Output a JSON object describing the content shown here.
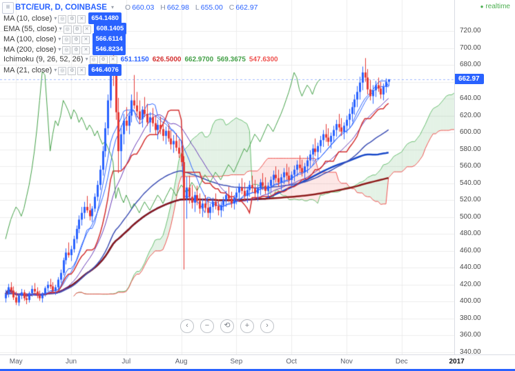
{
  "header": {
    "symbol_title": "BTC/EUR, D, COINBASE",
    "ohlc": {
      "o_label": "O",
      "o_value": "660.03",
      "h_label": "H",
      "h_value": "662.98",
      "l_label": "L",
      "l_value": "655.00",
      "c_label": "C",
      "c_value": "662.97"
    },
    "realtime_label": "realtime"
  },
  "legend": {
    "row_buttons": [
      {
        "name": "visibility-toggle-button",
        "glyph": "◎",
        "label": "Toggle visibility"
      },
      {
        "name": "settings-button",
        "glyph": "⚙",
        "label": "Settings"
      },
      {
        "name": "delete-button",
        "glyph": "✕",
        "label": "Remove"
      }
    ],
    "rows": [
      {
        "label": "MA (10, close)",
        "values": [
          {
            "text": "654.1480",
            "badge": true,
            "color": "#2962ff"
          }
        ]
      },
      {
        "label": "EMA (55, close)",
        "values": [
          {
            "text": "608.1405",
            "badge": true,
            "color": "#2962ff"
          }
        ]
      },
      {
        "label": "MA (100, close)",
        "values": [
          {
            "text": "566.6114",
            "badge": true,
            "color": "#2962ff"
          }
        ]
      },
      {
        "label": "MA (200, close)",
        "values": [
          {
            "text": "546.8234",
            "badge": true,
            "color": "#2962ff"
          }
        ]
      },
      {
        "label": "Ichimoku (9, 26, 52, 26)",
        "values": [
          {
            "text": "651.1150",
            "badge": false,
            "color": "#2962ff"
          },
          {
            "text": "626.5000",
            "badge": false,
            "color": "#d32f2f"
          },
          {
            "text": "662.9700",
            "badge": false,
            "color": "#43a047"
          },
          {
            "text": "569.3675",
            "badge": false,
            "color": "#43a047"
          },
          {
            "text": "547.6300",
            "badge": false,
            "color": "#ef5350"
          }
        ]
      },
      {
        "label": "MA (21, close)",
        "values": [
          {
            "text": "646.4076",
            "badge": true,
            "color": "#2962ff"
          }
        ]
      }
    ]
  },
  "price_scale": {
    "labels": [
      "720.00",
      "700.00",
      "680.00",
      "660.00",
      "640.00",
      "620.00",
      "600.00",
      "580.00",
      "560.00",
      "540.00",
      "520.00",
      "500.00",
      "480.00",
      "460.00",
      "440.00",
      "420.00",
      "400.00",
      "380.00",
      "360.00",
      "340.00"
    ],
    "last_price_label": "662.97",
    "tag_color": "#2962ff"
  },
  "nav": {
    "buttons": [
      {
        "name": "pan-left-button",
        "glyph": "‹"
      },
      {
        "name": "zoom-out-button",
        "glyph": "−"
      },
      {
        "name": "reset-view-button",
        "glyph": "⟲"
      },
      {
        "name": "zoom-in-button",
        "glyph": "+"
      },
      {
        "name": "pan-right-button",
        "glyph": "›"
      }
    ]
  },
  "chart_data": {
    "type": "candlestick",
    "title": "BTC/EUR, D, COINBASE",
    "y_axis": {
      "min": 340,
      "max": 720,
      "step": 20,
      "unit": "EUR"
    },
    "x_axis": {
      "tick_labels": [
        "May",
        "Jun",
        "Jul",
        "Aug",
        "Sep",
        "Oct",
        "Nov",
        "Dec",
        "2017"
      ],
      "tick_indices": [
        4,
        25,
        46,
        67,
        88,
        109,
        130,
        151,
        172
      ]
    },
    "last_price": 662.97,
    "colors": {
      "up": "#2962ff",
      "down": "#e53935",
      "grid": "#ececec",
      "last_price_line": "rgba(41,98,255,0.45)"
    },
    "overlays": [
      {
        "name": "MA (10, close)",
        "type": "sma",
        "length": 10,
        "color": "#2962ff",
        "width": 1,
        "last_value": 654.148
      },
      {
        "name": "MA (21, close)",
        "type": "sma",
        "length": 21,
        "color": "#673ab7",
        "width": 1,
        "last_value": 646.4076
      },
      {
        "name": "EMA (55, close)",
        "type": "ema",
        "length": 55,
        "color": "#3f51b5",
        "width": 1.5,
        "last_value": 608.1405
      },
      {
        "name": "MA (100, close)",
        "type": "sma",
        "length": 100,
        "color": "#1848c8",
        "width": 2.5,
        "last_value": 566.6114
      },
      {
        "name": "MA (200, close)",
        "type": "sma",
        "length": 200,
        "color": "#8e1b1b",
        "width": 2.5,
        "last_value": 546.8234
      }
    ],
    "ichimoku": {
      "params": [
        9,
        26,
        52,
        26
      ],
      "displacement": 26,
      "last_values": [
        651.115,
        626.5,
        662.97,
        569.3675,
        547.63
      ],
      "colors": {
        "tenkan": "#2962ff",
        "kijun": "#d32f2f",
        "chikou": "#43a047",
        "senkou_a": "#6abf72",
        "senkou_b": "#ef5350",
        "cloud_up": "rgba(103,183,119,0.18)",
        "cloud_down": "rgba(239,83,80,0.14)"
      }
    },
    "candles": [
      [
        404,
        414,
        399,
        409
      ],
      [
        409,
        421,
        405,
        417
      ],
      [
        417,
        423,
        410,
        413
      ],
      [
        413,
        418,
        402,
        405
      ],
      [
        405,
        412,
        396,
        399
      ],
      [
        399,
        409,
        395,
        407
      ],
      [
        407,
        415,
        403,
        411
      ],
      [
        411,
        414,
        401,
        404
      ],
      [
        404,
        410,
        397,
        402
      ],
      [
        402,
        412,
        399,
        410
      ],
      [
        410,
        419,
        406,
        415
      ],
      [
        415,
        422,
        409,
        412
      ],
      [
        412,
        417,
        404,
        407
      ],
      [
        407,
        413,
        401,
        404
      ],
      [
        404,
        411,
        399,
        409
      ],
      [
        409,
        418,
        406,
        416
      ],
      [
        416,
        424,
        412,
        420
      ],
      [
        420,
        427,
        415,
        418
      ],
      [
        418,
        423,
        410,
        413
      ],
      [
        413,
        420,
        408,
        417
      ],
      [
        417,
        429,
        414,
        426
      ],
      [
        426,
        438,
        422,
        434
      ],
      [
        434,
        452,
        431,
        449
      ],
      [
        449,
        463,
        444,
        458
      ],
      [
        458,
        470,
        452,
        455
      ],
      [
        455,
        466,
        448,
        462
      ],
      [
        462,
        478,
        458,
        474
      ],
      [
        474,
        490,
        469,
        486
      ],
      [
        486,
        502,
        481,
        497
      ],
      [
        497,
        512,
        490,
        505
      ],
      [
        505,
        518,
        498,
        512
      ],
      [
        512,
        525,
        505,
        508
      ],
      [
        508,
        516,
        496,
        501
      ],
      [
        501,
        513,
        494,
        510
      ],
      [
        510,
        528,
        506,
        524
      ],
      [
        524,
        543,
        519,
        538
      ],
      [
        538,
        561,
        532,
        556
      ],
      [
        556,
        584,
        549,
        578
      ],
      [
        578,
        612,
        571,
        605
      ],
      [
        605,
        645,
        597,
        638
      ],
      [
        638,
        682,
        629,
        672
      ],
      [
        672,
        701,
        655,
        668
      ],
      [
        668,
        678,
        615,
        624
      ],
      [
        624,
        641,
        552,
        578
      ],
      [
        578,
        608,
        556,
        598
      ],
      [
        598,
        622,
        586,
        614
      ],
      [
        614,
        630,
        602,
        608
      ],
      [
        608,
        625,
        598,
        620
      ],
      [
        620,
        645,
        612,
        638
      ],
      [
        638,
        668,
        628,
        632
      ],
      [
        632,
        648,
        618,
        625
      ],
      [
        625,
        638,
        610,
        616
      ],
      [
        616,
        631,
        606,
        627
      ],
      [
        627,
        642,
        618,
        622
      ],
      [
        622,
        634,
        608,
        612
      ],
      [
        612,
        624,
        600,
        618
      ],
      [
        618,
        629,
        607,
        611
      ],
      [
        611,
        620,
        597,
        603
      ],
      [
        603,
        615,
        592,
        609
      ],
      [
        609,
        619,
        598,
        604
      ],
      [
        604,
        612,
        590,
        596
      ],
      [
        596,
        607,
        586,
        602
      ],
      [
        602,
        610,
        589,
        593
      ],
      [
        593,
        603,
        580,
        586
      ],
      [
        586,
        597,
        576,
        590
      ],
      [
        590,
        599,
        578,
        582
      ],
      [
        582,
        592,
        570,
        575
      ],
      [
        575,
        584,
        560,
        565
      ],
      [
        565,
        572,
        438,
        522
      ],
      [
        522,
        548,
        498,
        535
      ],
      [
        535,
        549,
        516,
        524
      ],
      [
        524,
        538,
        510,
        517
      ],
      [
        517,
        530,
        506,
        526
      ],
      [
        526,
        537,
        514,
        519
      ],
      [
        519,
        528,
        504,
        510
      ],
      [
        510,
        522,
        500,
        516
      ],
      [
        516,
        526,
        506,
        511
      ],
      [
        511,
        520,
        499,
        505
      ],
      [
        505,
        516,
        497,
        512
      ],
      [
        512,
        523,
        505,
        518
      ],
      [
        518,
        528,
        509,
        513
      ],
      [
        513,
        521,
        502,
        508
      ],
      [
        508,
        518,
        500,
        514
      ],
      [
        514,
        524,
        507,
        520
      ],
      [
        520,
        531,
        512,
        526
      ],
      [
        526,
        536,
        518,
        522
      ],
      [
        522,
        530,
        511,
        516
      ],
      [
        516,
        526,
        509,
        523
      ],
      [
        523,
        534,
        515,
        529
      ],
      [
        529,
        540,
        521,
        535
      ],
      [
        535,
        546,
        527,
        531
      ],
      [
        531,
        541,
        520,
        525
      ],
      [
        525,
        536,
        517,
        532
      ],
      [
        532,
        543,
        524,
        538
      ],
      [
        538,
        549,
        529,
        534
      ],
      [
        534,
        544,
        523,
        528
      ],
      [
        528,
        538,
        519,
        534
      ],
      [
        534,
        545,
        526,
        541
      ],
      [
        541,
        552,
        532,
        537
      ],
      [
        537,
        547,
        527,
        531
      ],
      [
        531,
        541,
        522,
        537
      ],
      [
        537,
        548,
        529,
        544
      ],
      [
        544,
        555,
        536,
        550
      ],
      [
        550,
        560,
        541,
        546
      ],
      [
        546,
        556,
        536,
        541
      ],
      [
        541,
        551,
        532,
        547
      ],
      [
        547,
        558,
        539,
        553
      ],
      [
        553,
        563,
        544,
        549
      ],
      [
        549,
        559,
        539,
        544
      ],
      [
        544,
        554,
        536,
        550
      ],
      [
        550,
        561,
        542,
        556
      ],
      [
        556,
        567,
        548,
        562
      ],
      [
        562,
        573,
        553,
        558
      ],
      [
        558,
        568,
        548,
        553
      ],
      [
        553,
        564,
        545,
        560
      ],
      [
        560,
        572,
        552,
        567
      ],
      [
        567,
        579,
        559,
        574
      ],
      [
        574,
        586,
        566,
        581
      ],
      [
        581,
        593,
        572,
        577
      ],
      [
        577,
        588,
        568,
        584
      ],
      [
        584,
        596,
        576,
        591
      ],
      [
        591,
        603,
        583,
        598
      ],
      [
        598,
        610,
        589,
        594
      ],
      [
        594,
        605,
        584,
        589
      ],
      [
        589,
        600,
        581,
        596
      ],
      [
        596,
        608,
        588,
        603
      ],
      [
        603,
        615,
        595,
        610
      ],
      [
        610,
        622,
        601,
        606
      ],
      [
        606,
        617,
        596,
        601
      ],
      [
        601,
        612,
        592,
        608
      ],
      [
        608,
        620,
        599,
        615
      ],
      [
        615,
        628,
        606,
        622
      ],
      [
        622,
        636,
        613,
        630
      ],
      [
        630,
        645,
        621,
        639
      ],
      [
        639,
        655,
        630,
        648
      ],
      [
        648,
        666,
        639,
        659
      ],
      [
        659,
        678,
        650,
        671
      ],
      [
        671,
        688,
        660,
        665
      ],
      [
        665,
        675,
        645,
        651
      ],
      [
        651,
        662,
        638,
        643
      ],
      [
        643,
        656,
        634,
        650
      ],
      [
        650,
        661,
        642,
        656
      ],
      [
        656,
        665,
        648,
        652
      ],
      [
        652,
        660,
        640,
        645
      ],
      [
        645,
        658,
        638,
        654
      ],
      [
        654,
        664,
        647,
        660
      ],
      [
        660.03,
        662.98,
        655,
        662.97
      ]
    ]
  }
}
